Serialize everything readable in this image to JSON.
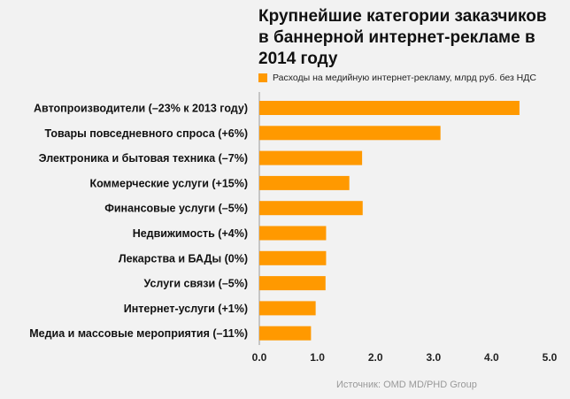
{
  "chart_data": {
    "type": "bar",
    "orientation": "horizontal",
    "title": "Крупнейшие категории заказчиков в баннерной интернет-рекламе в 2014 году",
    "categories": [
      "Автопроизводители (–23% к 2013 году)",
      "Товары повседневного спроса (+6%)",
      "Электроника и бытовая техника (–7%)",
      "Коммерческие услуги (+15%)",
      "Финансовые услуги (–5%)",
      "Недвижимость (+4%)",
      "Лекарства и БАДы (0%)",
      "Услуги связи (–5%)",
      "Интернет-услуги (+1%)",
      "Медиа и массовые мероприятия (–11%)"
    ],
    "series": [
      {
        "name": "Расходы на медийную интернет-рекламу, млрд руб. без НДС",
        "values": [
          4.48,
          3.12,
          1.77,
          1.55,
          1.78,
          1.15,
          1.15,
          1.14,
          0.97,
          0.89
        ],
        "color": "#ff9900"
      }
    ],
    "xlim": [
      0,
      5
    ],
    "xticks": [
      "0.0",
      "1.0",
      "2.0",
      "3.0",
      "4.0",
      "5.0"
    ],
    "grid": false,
    "legend_position": "top"
  },
  "title_display": "Крупнейшие категории заказчиков\nв баннерной интернет-рекламе в\n2014 году",
  "source": "Источник: OMD MD/PHD Group"
}
